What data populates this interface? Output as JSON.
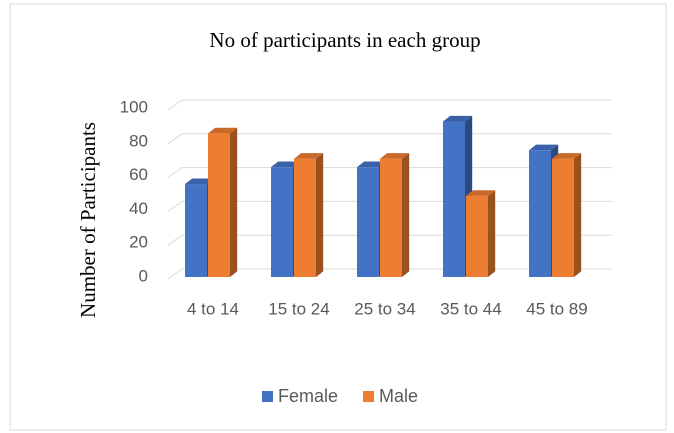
{
  "chart_data": {
    "type": "bar",
    "title": "No of participants in each group",
    "y_label": "Number of Participants",
    "categories": [
      "4 to 14",
      "15 to 24",
      "25 to 34",
      "35 to 44",
      "45 to 89"
    ],
    "series": [
      {
        "name": "Female",
        "color": "#4472c4",
        "values": [
          55,
          65,
          65,
          92,
          75
        ]
      },
      {
        "name": "Male",
        "color": "#ed7d31",
        "values": [
          85,
          70,
          70,
          48,
          70
        ]
      }
    ],
    "ylim": [
      0,
      100
    ],
    "yticks": [
      0,
      20,
      40,
      60,
      80,
      100
    ],
    "grid": true,
    "legend": "bottom"
  }
}
